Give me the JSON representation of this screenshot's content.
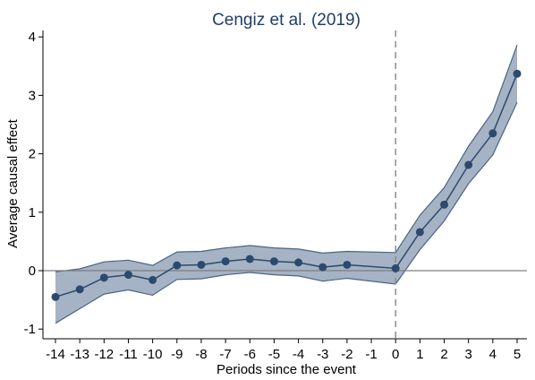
{
  "chart_data": {
    "type": "line",
    "title": "Cengiz et al. (2019)",
    "xlabel": "Periods since the event",
    "ylabel": "Average causal effect",
    "x": [
      -14,
      -13,
      -12,
      -11,
      -10,
      -9,
      -8,
      -7,
      -6,
      -5,
      -4,
      -3,
      -2,
      0,
      1,
      2,
      3,
      4,
      5
    ],
    "estimate": [
      -0.45,
      -0.32,
      -0.12,
      -0.07,
      -0.16,
      0.09,
      0.1,
      0.16,
      0.2,
      0.16,
      0.14,
      0.06,
      0.1,
      0.04,
      0.66,
      1.13,
      1.81,
      2.35,
      3.37
    ],
    "ci_lower": [
      -0.9,
      -0.65,
      -0.4,
      -0.33,
      -0.42,
      -0.15,
      -0.14,
      -0.07,
      -0.03,
      -0.07,
      -0.09,
      -0.18,
      -0.13,
      -0.23,
      0.36,
      0.85,
      1.49,
      1.98,
      2.88
    ],
    "ci_upper": [
      -0.02,
      0.03,
      0.15,
      0.18,
      0.09,
      0.32,
      0.33,
      0.39,
      0.43,
      0.39,
      0.37,
      0.3,
      0.33,
      0.31,
      0.95,
      1.42,
      2.13,
      2.72,
      3.86
    ],
    "xticks": [
      -14,
      -13,
      -12,
      -11,
      -10,
      -9,
      -8,
      -7,
      -6,
      -5,
      -4,
      -3,
      -2,
      -1,
      0,
      1,
      2,
      3,
      4,
      5
    ],
    "xtick_labels": [
      "-14",
      "-13",
      "-12",
      "-11",
      "-10",
      "-9",
      "-8",
      "-7",
      "-6",
      "-5",
      "-4",
      "-3",
      "-2",
      "-1",
      "0",
      "1",
      "2",
      "3",
      "4",
      "5"
    ],
    "yticks": [
      -1,
      0,
      1,
      2,
      3,
      4
    ],
    "ytick_labels": [
      "-1",
      "0",
      "1",
      "2",
      "3",
      "4"
    ],
    "xlim": [
      -14,
      5
    ],
    "ylim": [
      -1,
      4
    ],
    "reference_lines": {
      "horizontal_y": 0,
      "vertical_x": 0
    },
    "grid": false,
    "colors": {
      "line": "#2c4a6e",
      "marker": "#2c4a6e",
      "band_fill": "#a5b3c4",
      "band_edge": "#4a6585",
      "zero_line": "#7f7f7f",
      "event_line": "#8c8c8c",
      "title": "#1e3f66",
      "axis": "#000000"
    }
  }
}
